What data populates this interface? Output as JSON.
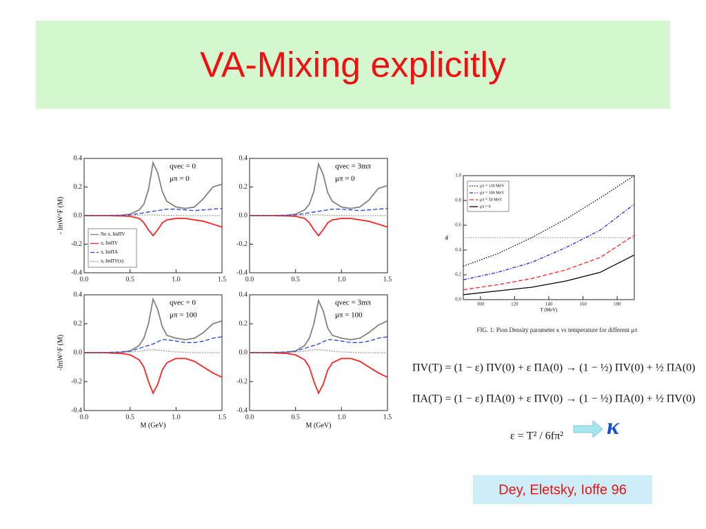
{
  "title": "VA-Mixing explicitly",
  "caption": "FIG. 1: Pion Density parameter κ vs temperature for different μπ",
  "equations": [
    "ΠV(T) = (1 − ε) ΠV(0) + ε ΠA(0) → (1 − ½) ΠV(0) + ½ ΠA(0)",
    "ΠA(T) = (1 − ε) ΠA(0) + ε ΠV(0) → (1 − ½) ΠA(0) + ½ ΠV(0)",
    "ε = T² / 6fπ²"
  ],
  "kappa_label": "κ",
  "citation": "Dey, Eletsky, Ioffe 96",
  "chart_data": [
    {
      "type": "line",
      "ylabel": "- ImW^F (M)",
      "annotations": [
        "qvec = 0",
        "μπ = 0"
      ],
      "legend": "lower left",
      "x": [
        0,
        0.2,
        0.4,
        0.5,
        0.6,
        0.65,
        0.7,
        0.75,
        0.8,
        0.85,
        0.9,
        1.0,
        1.1,
        1.2,
        1.3,
        1.4,
        1.5
      ],
      "xlim": [
        0,
        1.5
      ],
      "xticks": [
        {
          "value": 0,
          "label": "0.0"
        },
        0.5,
        {
          "value": 1,
          "label": "1.0"
        },
        1.5
      ],
      "ylim": [
        -0.4,
        0.4
      ],
      "yticks": [
        -0.4,
        -0.2,
        {
          "value": 0,
          "label": "0.0"
        },
        0.2,
        0.4
      ],
      "series": [
        {
          "name": "No π, ImΠV",
          "color": "#808080",
          "style": "solid",
          "values": [
            0,
            0,
            0.002,
            0.01,
            0.04,
            0.08,
            0.18,
            0.37,
            0.3,
            0.17,
            0.1,
            0.06,
            0.05,
            0.06,
            0.12,
            0.2,
            0.22
          ]
        },
        {
          "name": "π, ImΠV",
          "color": "#ff2020",
          "style": "solid",
          "values": [
            0,
            0,
            -0.002,
            -0.005,
            -0.02,
            -0.05,
            -0.1,
            -0.14,
            -0.1,
            -0.05,
            -0.03,
            -0.02,
            -0.02,
            -0.03,
            -0.04,
            -0.06,
            -0.08
          ]
        },
        {
          "name": "π, ImΠA",
          "color": "#2040e0",
          "style": "dashed",
          "values": [
            0,
            0,
            0.002,
            0.005,
            0.015,
            0.02,
            0.025,
            0.03,
            0.035,
            0.04,
            0.045,
            0.045,
            0.04,
            0.035,
            0.04,
            0.045,
            0.05
          ]
        },
        {
          "name": "π, ImΠV(π)",
          "color": "#808080",
          "style": "dotted",
          "values": [
            0,
            0,
            0,
            0.002,
            0.004,
            0.005,
            0.005,
            0.005,
            0.004,
            0.003,
            0.002,
            0.001,
            0,
            0,
            0,
            0,
            0
          ]
        }
      ]
    },
    {
      "type": "line",
      "annotations": [
        "qvec = 3mπ",
        "μπ = 0"
      ],
      "x": [
        0,
        0.2,
        0.4,
        0.5,
        0.6,
        0.65,
        0.7,
        0.75,
        0.8,
        0.85,
        0.9,
        1.0,
        1.1,
        1.2,
        1.3,
        1.4,
        1.5
      ],
      "xlim": [
        0,
        1.5
      ],
      "xticks": [
        {
          "value": 0,
          "label": "0.0"
        },
        0.5,
        {
          "value": 1,
          "label": "1.0"
        },
        1.5
      ],
      "ylim": [
        -0.4,
        0.4
      ],
      "yticks": [
        -0.4,
        -0.2,
        {
          "value": 0,
          "label": "0.0"
        },
        0.2,
        0.4
      ],
      "series": [
        {
          "color": "#808080",
          "style": "solid",
          "values": [
            0,
            0,
            0.002,
            0.01,
            0.04,
            0.08,
            0.17,
            0.36,
            0.29,
            0.16,
            0.1,
            0.06,
            0.05,
            0.06,
            0.11,
            0.19,
            0.21
          ]
        },
        {
          "color": "#ff2020",
          "style": "solid",
          "values": [
            0,
            0,
            -0.002,
            -0.005,
            -0.02,
            -0.05,
            -0.1,
            -0.14,
            -0.1,
            -0.05,
            -0.03,
            -0.02,
            -0.02,
            -0.03,
            -0.04,
            -0.06,
            -0.08
          ]
        },
        {
          "color": "#2040e0",
          "style": "dashed",
          "values": [
            0,
            0,
            0.002,
            0.005,
            0.015,
            0.02,
            0.025,
            0.03,
            0.035,
            0.04,
            0.045,
            0.045,
            0.04,
            0.035,
            0.04,
            0.045,
            0.05
          ]
        },
        {
          "color": "#808080",
          "style": "dotted",
          "values": [
            0,
            0,
            0,
            0.002,
            0.004,
            0.005,
            0.005,
            0.005,
            0.004,
            0.003,
            0.002,
            0.001,
            0,
            0,
            0,
            0,
            0
          ]
        }
      ]
    },
    {
      "type": "line",
      "ylabel": "-ImW^F (M)",
      "xlabel": "M (GeV)",
      "annotations": [
        "qvec = 0",
        "μπ = 100"
      ],
      "x": [
        0,
        0.2,
        0.4,
        0.5,
        0.6,
        0.65,
        0.7,
        0.75,
        0.8,
        0.85,
        0.9,
        1.0,
        1.1,
        1.2,
        1.3,
        1.4,
        1.5
      ],
      "xlim": [
        0,
        1.5
      ],
      "xticks": [
        {
          "value": 0,
          "label": "0.0"
        },
        0.5,
        {
          "value": 1,
          "label": "1.0"
        },
        1.5
      ],
      "ylim": [
        -0.4,
        0.4
      ],
      "yticks": [
        -0.4,
        -0.2,
        {
          "value": 0,
          "label": "0.0"
        },
        0.2,
        0.4
      ],
      "series": [
        {
          "color": "#808080",
          "style": "solid",
          "values": [
            0,
            0,
            0.003,
            0.012,
            0.05,
            0.1,
            0.2,
            0.37,
            0.3,
            0.18,
            0.12,
            0.1,
            0.09,
            0.1,
            0.14,
            0.2,
            0.22
          ]
        },
        {
          "color": "#ff2020",
          "style": "solid",
          "values": [
            0,
            0,
            -0.005,
            -0.015,
            -0.05,
            -0.1,
            -0.2,
            -0.28,
            -0.22,
            -0.12,
            -0.07,
            -0.04,
            -0.04,
            -0.06,
            -0.1,
            -0.14,
            -0.17
          ]
        },
        {
          "color": "#2040e0",
          "style": "dashed",
          "values": [
            0,
            0,
            0.005,
            0.01,
            0.03,
            0.04,
            0.05,
            0.06,
            0.075,
            0.09,
            0.09,
            0.08,
            0.07,
            0.07,
            0.08,
            0.1,
            0.11
          ]
        },
        {
          "color": "#808080",
          "style": "dotted",
          "values": [
            0,
            0,
            0,
            0.005,
            0.01,
            0.015,
            0.02,
            0.02,
            0.018,
            0.015,
            0.01,
            0.005,
            0.002,
            0,
            0,
            0,
            0
          ]
        }
      ]
    },
    {
      "type": "line",
      "xlabel": "M (GeV)",
      "annotations": [
        "qvec = 3mπ",
        "μπ = 100"
      ],
      "x": [
        0,
        0.2,
        0.4,
        0.5,
        0.6,
        0.65,
        0.7,
        0.75,
        0.8,
        0.85,
        0.9,
        1.0,
        1.1,
        1.2,
        1.3,
        1.4,
        1.5
      ],
      "xlim": [
        0,
        1.5
      ],
      "xticks": [
        {
          "value": 0,
          "label": "0.0"
        },
        0.5,
        {
          "value": 1,
          "label": "1.0"
        },
        1.5
      ],
      "ylim": [
        -0.4,
        0.4
      ],
      "yticks": [
        -0.4,
        -0.2,
        {
          "value": 0,
          "label": "0.0"
        },
        0.2,
        0.4
      ],
      "series": [
        {
          "color": "#808080",
          "style": "solid",
          "values": [
            0,
            0,
            0.003,
            0.012,
            0.05,
            0.1,
            0.2,
            0.36,
            0.29,
            0.17,
            0.12,
            0.1,
            0.09,
            0.1,
            0.14,
            0.19,
            0.22
          ]
        },
        {
          "color": "#ff2020",
          "style": "solid",
          "values": [
            0,
            0,
            -0.005,
            -0.015,
            -0.05,
            -0.1,
            -0.2,
            -0.28,
            -0.22,
            -0.12,
            -0.07,
            -0.04,
            -0.04,
            -0.06,
            -0.1,
            -0.14,
            -0.17
          ]
        },
        {
          "color": "#2040e0",
          "style": "dashed",
          "values": [
            0,
            0,
            0.005,
            0.01,
            0.03,
            0.04,
            0.05,
            0.06,
            0.075,
            0.09,
            0.09,
            0.08,
            0.07,
            0.07,
            0.08,
            0.1,
            0.11
          ]
        },
        {
          "color": "#808080",
          "style": "dotted",
          "values": [
            0,
            0,
            0,
            0.005,
            0.01,
            0.015,
            0.02,
            0.02,
            0.018,
            0.015,
            0.01,
            0.005,
            0.002,
            0,
            0,
            0,
            0
          ]
        }
      ]
    },
    {
      "type": "line",
      "ylabel": "4κ",
      "xlabel": "T (MeV)",
      "legend": "upper left",
      "hline": 0.5,
      "x": [
        90,
        110,
        130,
        150,
        170,
        190
      ],
      "xlim": [
        90,
        190
      ],
      "xticks": [
        100,
        120,
        140,
        160,
        180
      ],
      "ylim": [
        0,
        1
      ],
      "yticks": [
        {
          "value": 0,
          "label": "0.0"
        },
        0.2,
        0.4,
        0.6,
        0.8,
        {
          "value": 1,
          "label": "1.0"
        }
      ],
      "series": [
        {
          "name": "μπ = 130 MeV",
          "color": "#000000",
          "style": "dotted",
          "values": [
            0.27,
            0.37,
            0.5,
            0.65,
            0.82,
            1.0
          ]
        },
        {
          "name": "μπ = 100 MeV",
          "color": "#2020e0",
          "style": "dashdot",
          "values": [
            0.16,
            0.22,
            0.3,
            0.42,
            0.56,
            0.77
          ]
        },
        {
          "name": "μπ = 50 MeV",
          "color": "#ff2020",
          "style": "dashed",
          "values": [
            0.08,
            0.12,
            0.17,
            0.24,
            0.34,
            0.52
          ]
        },
        {
          "name": "μπ = 0",
          "color": "#000000",
          "style": "solid",
          "values": [
            0.04,
            0.07,
            0.1,
            0.15,
            0.22,
            0.36
          ]
        }
      ]
    }
  ]
}
